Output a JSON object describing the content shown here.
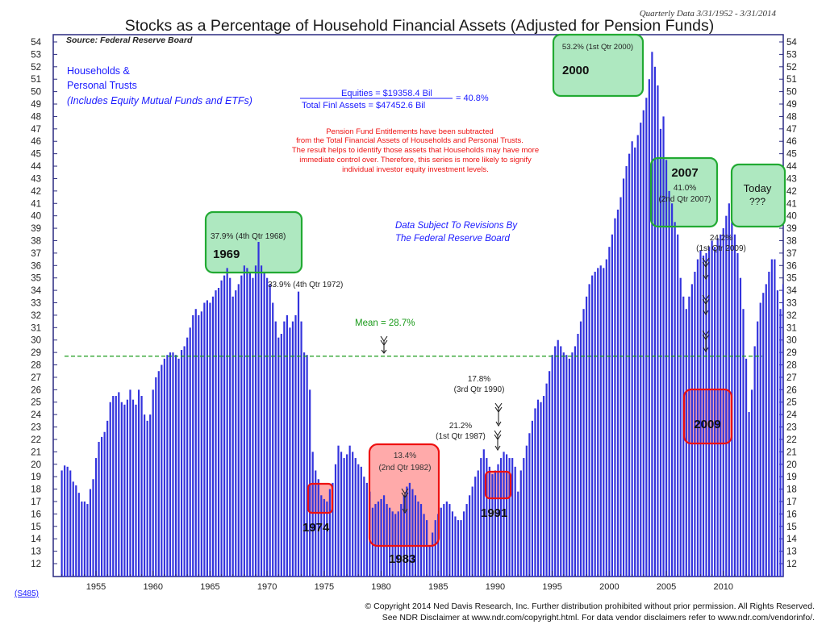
{
  "chart_data": {
    "type": "bar",
    "title": "Stocks as a Percentage of Household Financial Assets (Adjusted for Pension Funds)",
    "subtitle": "Quarterly Data 3/31/1952 - 3/31/2014",
    "source": "Source: Federal Reserve Board",
    "series_name": [
      "Households &",
      "Personal Trusts",
      "(Includes Equity Mutual Funds and ETFs)"
    ],
    "formula": {
      "numerator": "Equities = $19358.4 Bil",
      "denominator": "Total Finl Assets = $47452.6 Bil",
      "result": "= 40.8%"
    },
    "note": [
      "Pension Fund Entitlements have been subtracted",
      "from the Total Financial Assets of Households and Personal Trusts.",
      "The result helps to identify those assets that Households may have more",
      "immediate control over.  Therefore, this series is more likely to signify",
      "individual investor equity investment levels."
    ],
    "revision_note": [
      "Data Subject To Revisions By",
      "The Federal Reserve Board"
    ],
    "mean": {
      "value": 28.7,
      "label": "Mean = 28.7%"
    },
    "ylim": [
      12,
      54
    ],
    "yticks": [
      12,
      13,
      14,
      15,
      16,
      17,
      18,
      19,
      20,
      21,
      22,
      23,
      24,
      25,
      26,
      27,
      28,
      29,
      30,
      31,
      32,
      33,
      34,
      35,
      36,
      37,
      38,
      39,
      40,
      41,
      42,
      43,
      44,
      45,
      46,
      47,
      48,
      49,
      50,
      51,
      52,
      53,
      54
    ],
    "xlim": [
      1951.25,
      2015.25
    ],
    "xticks": [
      "1955",
      "1960",
      "1965",
      "1970",
      "1975",
      "1980",
      "1985",
      "1990",
      "1995",
      "2000",
      "2005",
      "2010"
    ],
    "x_start": 1952.0,
    "x_step": 0.25,
    "values": [
      19.5,
      19.9,
      19.8,
      19.5,
      18.6,
      18.3,
      17.7,
      17.0,
      17.0,
      16.8,
      18.0,
      18.8,
      20.5,
      21.8,
      22.2,
      22.6,
      23.5,
      25.0,
      25.5,
      25.5,
      25.8,
      25.0,
      24.8,
      25.2,
      26.0,
      25.2,
      24.8,
      26.0,
      25.5,
      24.0,
      23.5,
      24.0,
      26.0,
      27.0,
      27.5,
      28.0,
      28.5,
      28.8,
      29.0,
      29.0,
      28.8,
      28.5,
      29.2,
      29.5,
      30.2,
      31.0,
      32.0,
      32.5,
      32.0,
      32.3,
      33.0,
      33.2,
      33.0,
      33.5,
      34.0,
      34.2,
      34.8,
      35.2,
      35.8,
      35.0,
      33.5,
      34.0,
      34.5,
      35.2,
      36.0,
      35.8,
      35.5,
      35.0,
      36.0,
      37.9,
      36.0,
      35.5,
      35.0,
      34.5,
      33.0,
      31.5,
      30.2,
      30.5,
      31.5,
      32.0,
      31.0,
      31.5,
      32.0,
      33.9,
      31.5,
      29.0,
      28.8,
      26.0,
      21.0,
      19.5,
      18.8,
      17.5,
      17.2,
      17.0,
      18.0,
      18.5,
      20.0,
      21.5,
      21.0,
      20.5,
      20.8,
      21.5,
      21.0,
      20.5,
      20.0,
      19.8,
      19.0,
      18.5,
      17.8,
      16.5,
      16.8,
      17.0,
      17.2,
      17.5,
      16.8,
      16.5,
      16.2,
      16.0,
      16.2,
      16.8,
      17.5,
      18.2,
      18.5,
      18.0,
      17.5,
      17.0,
      16.8,
      16.0,
      15.5,
      13.4,
      14.5,
      15.5,
      16.0,
      16.5,
      16.8,
      17.0,
      16.8,
      16.2,
      15.8,
      15.5,
      15.5,
      16.2,
      16.8,
      17.5,
      18.2,
      19.0,
      19.5,
      20.5,
      21.2,
      20.5,
      19.8,
      19.2,
      19.5,
      20.0,
      20.5,
      21.0,
      20.8,
      20.5,
      20.5,
      19.8,
      17.8,
      19.5,
      20.5,
      21.5,
      22.5,
      23.5,
      24.5,
      25.2,
      25.0,
      25.5,
      26.5,
      27.5,
      28.8,
      29.5,
      30.0,
      29.5,
      29.0,
      28.8,
      28.5,
      29.0,
      29.5,
      30.5,
      31.5,
      32.5,
      33.5,
      34.5,
      35.2,
      35.5,
      35.8,
      36.0,
      35.8,
      36.5,
      37.5,
      38.5,
      39.8,
      40.5,
      41.5,
      43.0,
      44.0,
      45.0,
      46.0,
      45.5,
      46.5,
      47.5,
      48.5,
      49.5,
      51.0,
      53.2,
      52.0,
      50.5,
      47.0,
      48.0,
      44.5,
      42.0,
      41.0,
      39.5,
      38.5,
      35.0,
      33.5,
      32.5,
      33.5,
      34.5,
      35.5,
      36.5,
      37.2,
      36.8,
      37.0,
      37.5,
      38.0,
      37.5,
      38.2,
      38.5,
      39.0,
      40.0,
      41.0,
      39.5,
      38.5,
      37.0,
      35.0,
      32.5,
      28.5,
      24.2,
      26.0,
      29.5,
      31.5,
      33.0,
      33.8,
      34.5,
      35.5,
      36.5,
      36.5,
      34.0,
      32.5,
      34.5,
      35.5,
      36.0,
      37.0,
      36.5,
      37.5,
      38.0,
      39.0,
      40.0,
      40.8
    ],
    "callouts": [
      {
        "id": "1968",
        "lines": [
          "37.9% (4th Qtr 1968)"
        ],
        "year_label": "1969",
        "box": "green"
      },
      {
        "id": "1972",
        "lines": [
          "33.9% (4th Qtr 1972)"
        ]
      },
      {
        "id": "1974",
        "year_label": "1974",
        "box": "red"
      },
      {
        "id": "1982",
        "lines": [
          "13.4%",
          "(2nd Qtr 1982)"
        ],
        "year_label": "1983",
        "box": "red"
      },
      {
        "id": "1987",
        "lines": [
          "21.2%",
          "(1st Qtr 1987)"
        ]
      },
      {
        "id": "1990",
        "lines": [
          "17.8%",
          "(3rd Qtr 1990)"
        ],
        "year_label": "1991",
        "box": "red"
      },
      {
        "id": "2000",
        "lines": [
          "53.2% (1st Qtr 2000)"
        ],
        "year_label": "2000",
        "box": "green"
      },
      {
        "id": "2007",
        "lines": [
          "41.0%",
          "(2nd Qtr 2007)"
        ],
        "year_label": "2007",
        "box": "green"
      },
      {
        "id": "2009",
        "lines": [
          "24.2%",
          "(1st Qtr 2009)"
        ],
        "year_label": "2009",
        "box": "red"
      },
      {
        "id": "today",
        "lines": [
          "Today",
          "???"
        ],
        "box": "green"
      }
    ],
    "colors": {
      "bar": "#3333dd",
      "frame": "#2a2a80",
      "text_blue": "#1a1aff",
      "mean": "#1a9a1a",
      "note_red": "#ee1111",
      "green_box": "#22aa33",
      "green_fill": "#aee8c0",
      "red_box": "#ee1111",
      "red_fill": "#ffaaaa"
    },
    "chart_code": "(S485)",
    "footer": [
      "© Copyright 2014 Ned Davis Research, Inc.  Further distribution prohibited without prior permission.  All Rights Reserved.",
      "See NDR Disclaimer at www.ndr.com/copyright.html.  For data vendor disclaimers refer to www.ndr.com/vendorinfo/."
    ]
  }
}
